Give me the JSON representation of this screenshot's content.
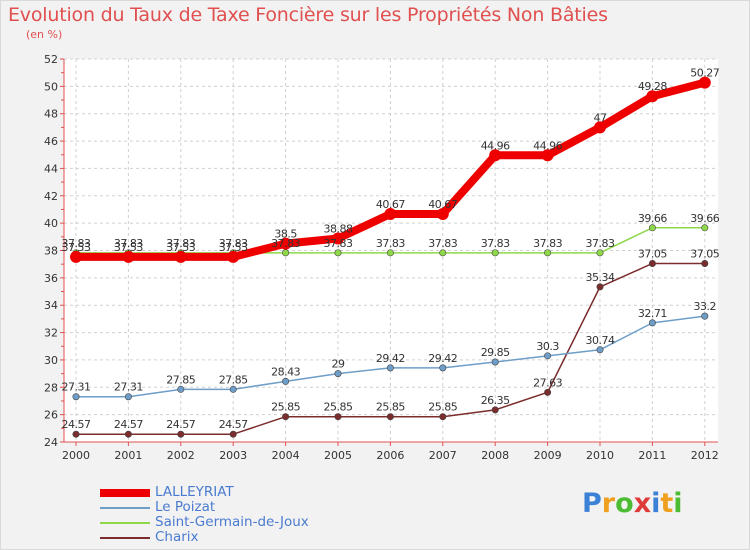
{
  "title": "Evolution du Taux de Taxe Foncière sur les Propriétés Non Bâties",
  "subtitle": "(en %)",
  "logo": {
    "letters": [
      {
        "char": "P",
        "color": "#3b82d6"
      },
      {
        "char": "r",
        "color": "#f0a020"
      },
      {
        "char": "o",
        "color": "#4cbd32"
      },
      {
        "char": "x",
        "color": "#e03b3b"
      },
      {
        "char": "i",
        "color": "#3b82d6"
      },
      {
        "char": "t",
        "color": "#f0a020"
      },
      {
        "char": "i",
        "color": "#4cbd32"
      }
    ]
  },
  "chart_data": {
    "type": "line",
    "x": [
      "2000",
      "2001",
      "2002",
      "2003",
      "2004",
      "2005",
      "2006",
      "2007",
      "2008",
      "2009",
      "2010",
      "2011",
      "2012"
    ],
    "ylim": [
      24,
      52
    ],
    "yticks": [
      "24",
      "26",
      "28",
      "30",
      "32",
      "34",
      "36",
      "38",
      "40",
      "42",
      "44",
      "46",
      "48",
      "50",
      "52"
    ],
    "grid": true,
    "legend_position": "bottom-left",
    "series": [
      {
        "name": "Charix",
        "color": "#7b2c2c",
        "values": [
          24.57,
          24.57,
          24.57,
          24.57,
          25.85,
          25.85,
          25.85,
          25.85,
          26.35,
          27.63,
          35.34,
          37.05,
          37.05
        ],
        "labels": [
          "24.57",
          "24.57",
          "24.57",
          "24.57",
          "25.85",
          "25.85",
          "25.85",
          "25.85",
          "26.35",
          "27.63",
          "35.34",
          "37.05",
          "37.05"
        ]
      },
      {
        "name": "Le Poizat",
        "color": "#6e9ec8",
        "values": [
          27.31,
          27.31,
          27.85,
          27.85,
          28.43,
          29,
          29.42,
          29.42,
          29.85,
          30.3,
          30.74,
          32.71,
          33.2
        ],
        "labels": [
          "27.31",
          "27.31",
          "27.85",
          "27.85",
          "28.43",
          "29",
          "29.42",
          "29.42",
          "29.85",
          "30.3",
          "30.74",
          "32.71",
          "33.2"
        ]
      },
      {
        "name": "Saint-Germain-de-Joux",
        "color": "#8ed84a",
        "values": [
          37.83,
          37.83,
          37.83,
          37.83,
          37.83,
          37.83,
          37.83,
          37.83,
          37.83,
          37.83,
          37.83,
          39.66,
          39.66
        ],
        "labels": [
          "37.83",
          "37.83",
          "37.83",
          "37.83",
          "37.83",
          "37.83",
          "37.83",
          "37.83",
          "37.83",
          "37.83",
          "37.83",
          "39.66",
          "39.66"
        ]
      },
      {
        "name": "LALLEYRIAT",
        "color": "#ee0000",
        "values": [
          37.53,
          37.53,
          37.53,
          37.53,
          38.5,
          38.88,
          40.67,
          40.67,
          44.96,
          44.96,
          47,
          49.28,
          50.27
        ],
        "labels": [
          "37.53",
          "37.53",
          "37.53",
          "37.53",
          "38.5",
          "38.88",
          "40.67",
          "40.67",
          "44.96",
          "44.96",
          "47",
          "49.28",
          "50.27"
        ]
      }
    ],
    "legend_order": [
      "LALLEYRIAT",
      "Le Poizat",
      "Saint-Germain-de-Joux",
      "Charix"
    ]
  }
}
